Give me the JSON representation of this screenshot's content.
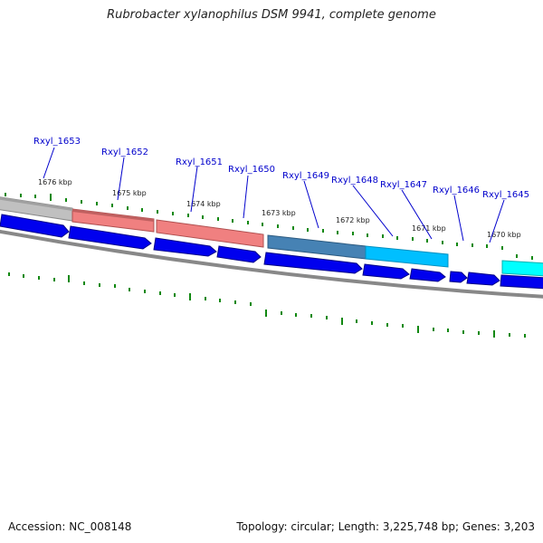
{
  "title": "Rubrobacter xylanophilus DSM 9941, complete genome",
  "accession_text": "Accession: NC_008148",
  "stats_text": "Topology: circular; Length: 3,225,748 bp; Genes: 3,203",
  "gene_labels": [
    "Rxyl_1653",
    "Rxyl_1652",
    "Rxyl_1651",
    "Rxyl_1650",
    "Rxyl_1649",
    "Rxyl_1648",
    "Rxyl_1647",
    "Rxyl_1646",
    "Rxyl_1645"
  ],
  "kbp_labels": [
    "1676 kbp",
    "1675 kbp",
    "1674 kbp",
    "1673 kbp",
    "1672 kbp",
    "1671 kbp",
    "1670 kbp"
  ],
  "colors": {
    "gene_arrow": "#0000ee",
    "tick": "#118811",
    "backbone": "#888888",
    "label": "#0000cc",
    "segments": [
      "#c0c0c0",
      "#f08080",
      "#f08080",
      "#4682b4",
      "#00bfff",
      "#00ffff"
    ]
  }
}
